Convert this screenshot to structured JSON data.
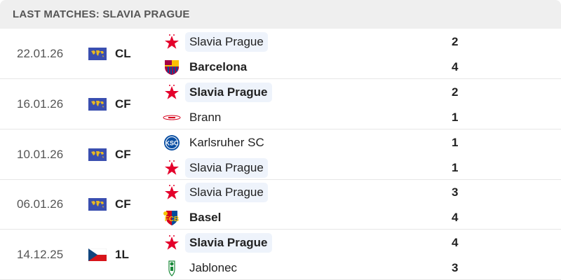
{
  "header": {
    "title": "LAST MATCHES: SLAVIA PRAGUE"
  },
  "colors": {
    "highlight": "#eef3fb",
    "slavia_red": "#e4002b"
  },
  "matches": [
    {
      "date": "22.01.26",
      "competition": "CL",
      "flag": "world-flag",
      "home": {
        "name": "Slavia Prague",
        "logo": "slavia-star",
        "score": "2",
        "bold": false,
        "highlight": true
      },
      "away": {
        "name": "Barcelona",
        "logo": "barcelona-crest",
        "score": "4",
        "bold": true,
        "highlight": false
      }
    },
    {
      "date": "16.01.26",
      "competition": "CF",
      "flag": "world-flag",
      "home": {
        "name": "Slavia Prague",
        "logo": "slavia-star",
        "score": "2",
        "bold": true,
        "highlight": true
      },
      "away": {
        "name": "Brann",
        "logo": "brann-logo",
        "score": "1",
        "bold": false,
        "highlight": false
      }
    },
    {
      "date": "10.01.26",
      "competition": "CF",
      "flag": "world-flag",
      "home": {
        "name": "Karlsruher SC",
        "logo": "ksc-logo",
        "score": "1",
        "bold": false,
        "highlight": false
      },
      "away": {
        "name": "Slavia Prague",
        "logo": "slavia-star",
        "score": "1",
        "bold": false,
        "highlight": true
      }
    },
    {
      "date": "06.01.26",
      "competition": "CF",
      "flag": "world-flag",
      "home": {
        "name": "Slavia Prague",
        "logo": "slavia-star",
        "score": "3",
        "bold": false,
        "highlight": true
      },
      "away": {
        "name": "Basel",
        "logo": "basel-crest",
        "score": "4",
        "bold": true,
        "highlight": false
      }
    },
    {
      "date": "14.12.25",
      "competition": "1L",
      "flag": "czech-flag",
      "home": {
        "name": "Slavia Prague",
        "logo": "slavia-star",
        "score": "4",
        "bold": true,
        "highlight": true
      },
      "away": {
        "name": "Jablonec",
        "logo": "jablonec-crest",
        "score": "3",
        "bold": false,
        "highlight": false
      }
    }
  ]
}
